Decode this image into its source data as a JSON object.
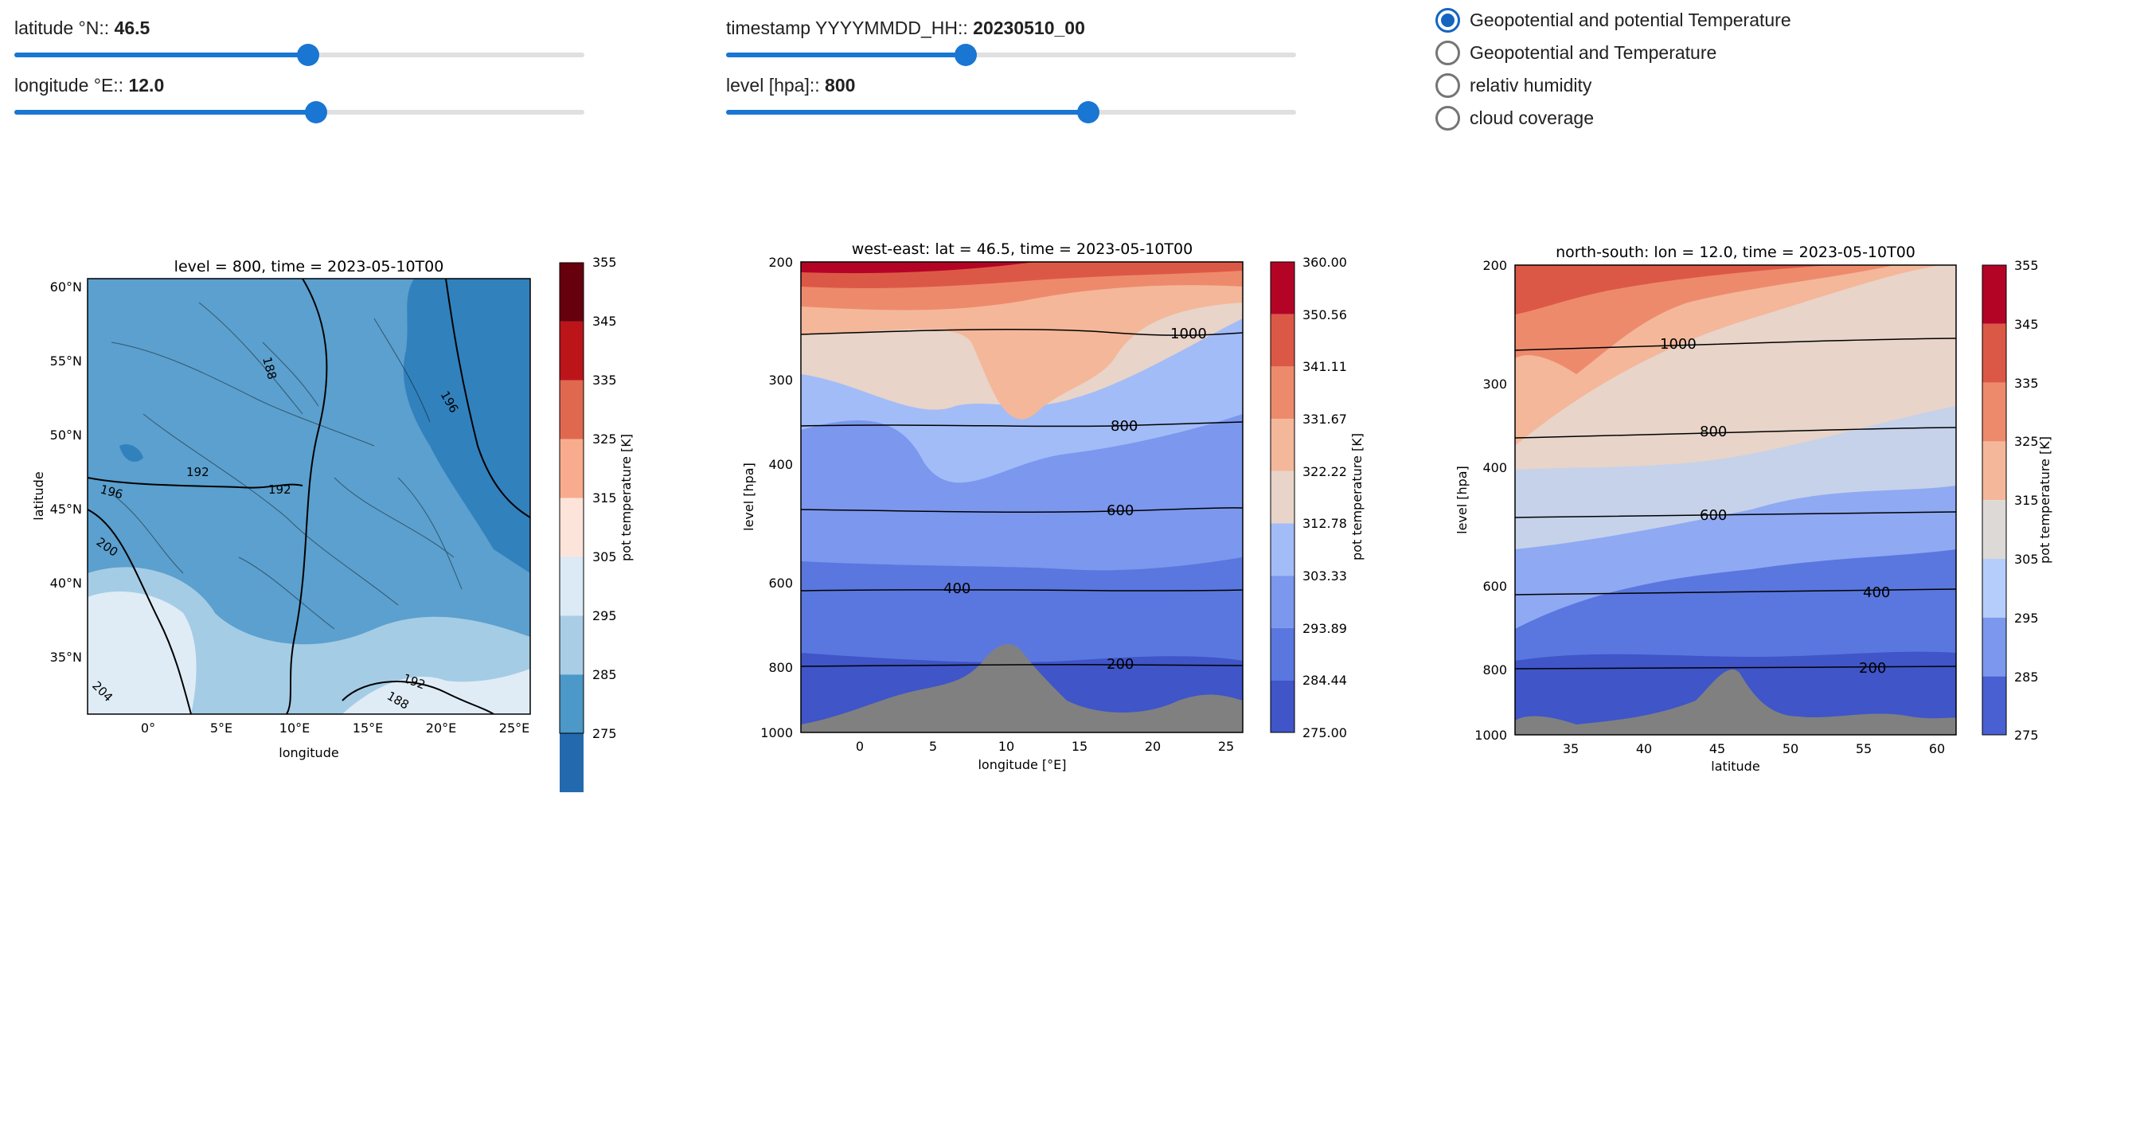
{
  "sliders": {
    "latitude": {
      "label": "latitude °N::",
      "value": "46.5",
      "fraction": 0.515
    },
    "timestamp": {
      "label": "timestamp YYYYMMDD_HH::",
      "value": "20230510_00",
      "fraction": 0.42
    },
    "longitude": {
      "label": "longitude °E::",
      "value": "12.0",
      "fraction": 0.53
    },
    "level": {
      "label": "level [hpa]::",
      "value": "800",
      "fraction": 0.635
    }
  },
  "radio_options": [
    {
      "label": "Geopotential and potential Temperature",
      "selected": true
    },
    {
      "label": "Geopotential and Temperature",
      "selected": false
    },
    {
      "label": "relativ humidity",
      "selected": false
    },
    {
      "label": "cloud coverage",
      "selected": false
    }
  ],
  "accent_color": "#1976d2",
  "chart_data": [
    {
      "type": "heatmap",
      "title": "level = 800, time = 2023-05-10T00",
      "xlabel": "longitude",
      "ylabel": "latitude",
      "xticks": [
        "0°",
        "5°E",
        "10°E",
        "15°E",
        "20°E",
        "25°E"
      ],
      "yticks": [
        "60°N",
        "55°N",
        "50°N",
        "45°N",
        "40°N",
        "35°N"
      ],
      "colorbar": {
        "label": "pot temperature [K]",
        "ticks": [
          "355",
          "345",
          "335",
          "325",
          "315",
          "305",
          "295",
          "285",
          "275"
        ],
        "colormap": "Blues-Reds"
      },
      "contour_labels": [
        "188",
        "196",
        "192",
        "192",
        "196",
        "200",
        "204",
        "192",
        "188"
      ]
    },
    {
      "type": "heatmap",
      "title": "west-east: lat = 46.5, time = 2023-05-10T00",
      "xlabel": "longitude [°E]",
      "ylabel": "level [hpa]",
      "xticks": [
        "0",
        "5",
        "10",
        "15",
        "20",
        "25"
      ],
      "yticks": [
        "200",
        "300",
        "400",
        "600",
        "800",
        "1000"
      ],
      "colorbar": {
        "label": "pot temperature [K]",
        "ticks": [
          "360.00",
          "350.56",
          "341.11",
          "331.67",
          "322.22",
          "312.78",
          "303.33",
          "293.89",
          "284.44",
          "275.00"
        ],
        "colormap": "coolwarm"
      },
      "contour_labels": [
        "1000",
        "800",
        "600",
        "400",
        "200"
      ]
    },
    {
      "type": "heatmap",
      "title": "north-south: lon = 12.0, time = 2023-05-10T00",
      "xlabel": "latitude",
      "ylabel": "level [hpa]",
      "xticks": [
        "35",
        "40",
        "45",
        "50",
        "55",
        "60"
      ],
      "yticks": [
        "200",
        "300",
        "400",
        "600",
        "800",
        "1000"
      ],
      "colorbar": {
        "label": "pot temperature [K]",
        "ticks": [
          "355",
          "345",
          "335",
          "325",
          "315",
          "305",
          "295",
          "285",
          "275"
        ],
        "colormap": "coolwarm"
      },
      "contour_labels": [
        "1000",
        "800",
        "600",
        "400",
        "200"
      ]
    }
  ]
}
